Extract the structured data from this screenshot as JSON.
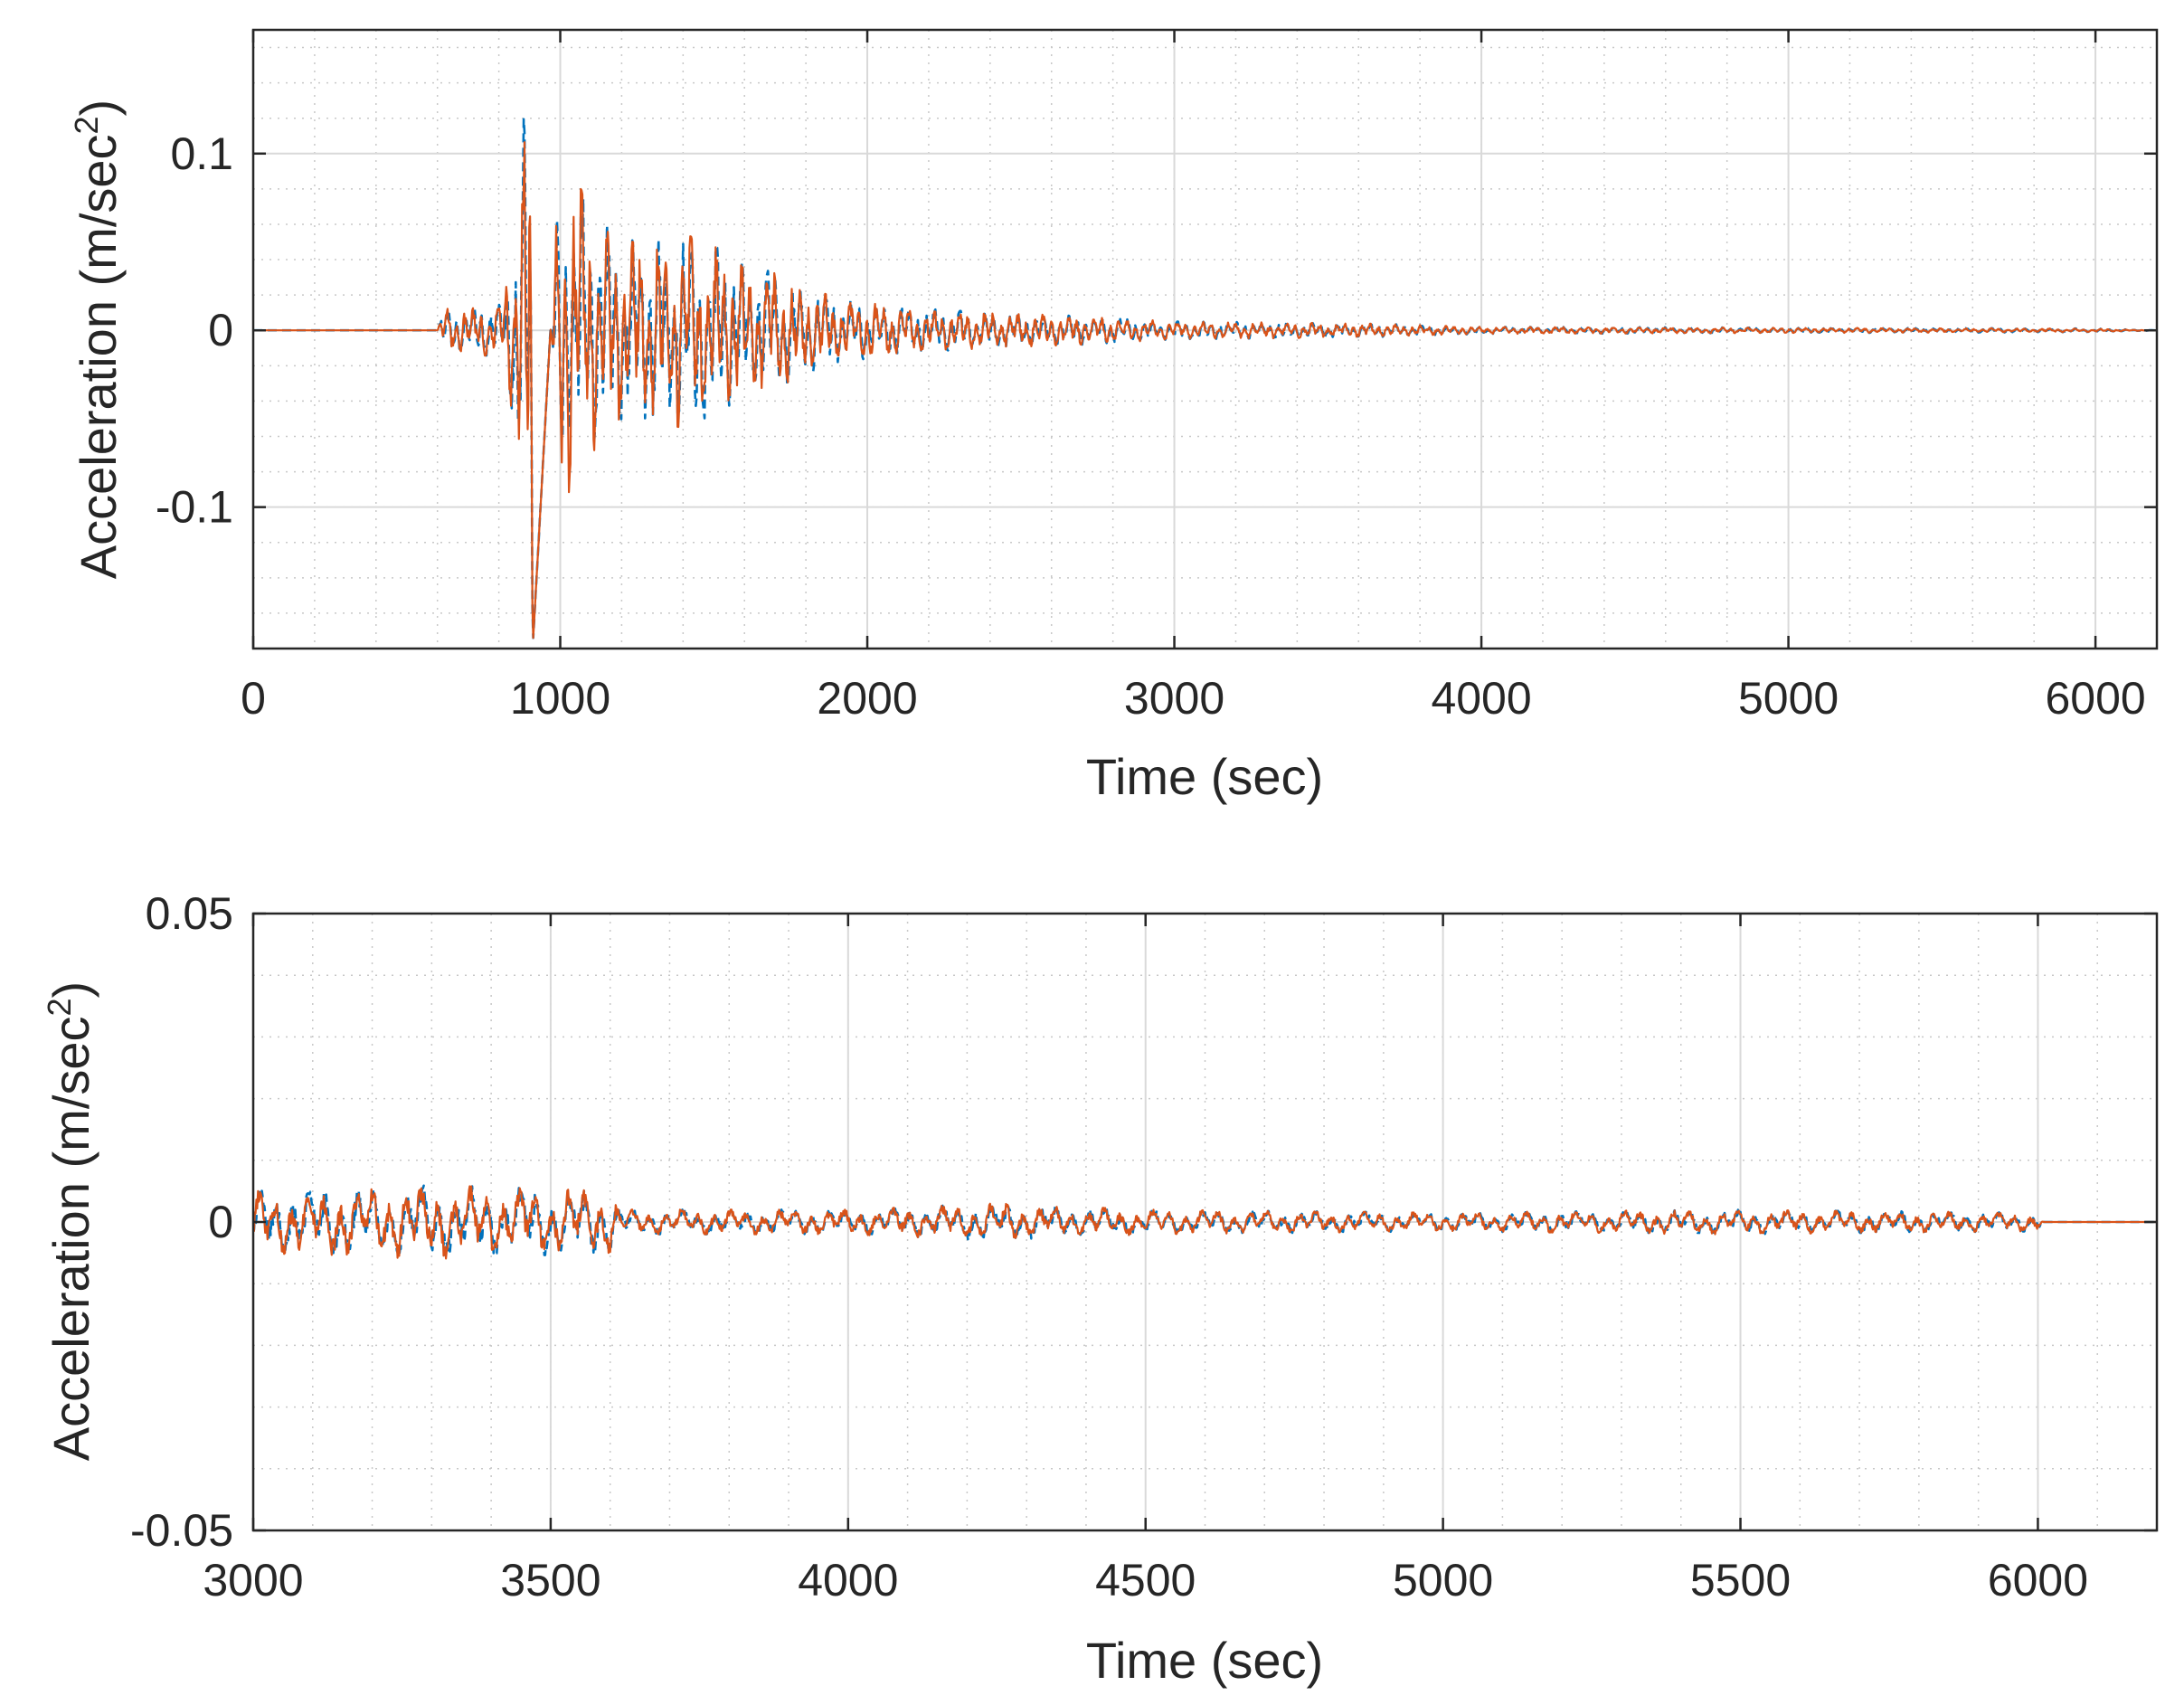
{
  "colors": {
    "series_blue": "#0072BD",
    "series_orange": "#D95319",
    "grid": "#d9d9d9",
    "axes": "#262626"
  },
  "chart_data": [
    {
      "type": "line",
      "title": "",
      "xlabel": "Time (sec)",
      "ylabel": "Acceleration (m/sec",
      "ylabel_sup": "2",
      "ylabel_close": ")",
      "xlim": [
        0,
        6200
      ],
      "ylim": [
        -0.18,
        0.17
      ],
      "xticks": [
        0,
        1000,
        2000,
        3000,
        4000,
        5000,
        6000
      ],
      "xtick_labels": [
        "0",
        "1000",
        "2000",
        "3000",
        "4000",
        "5000",
        "6000"
      ],
      "yticks": [
        -0.1,
        0,
        0.1
      ],
      "ytick_labels": [
        "-0.1",
        "0",
        "0.1"
      ],
      "grid": true,
      "minor_grid": true,
      "legend": "none",
      "series": [
        {
          "color": "#0072BD",
          "style": "dashed",
          "envelope": [
            [
              0,
              0
            ],
            [
              600,
              0.0
            ],
            [
              620,
              0.012
            ],
            [
              800,
              0.015
            ],
            [
              850,
              0.05
            ],
            [
              900,
              0.17
            ],
            [
              910,
              -0.18
            ],
            [
              1000,
              0.1
            ],
            [
              1100,
              0.07
            ],
            [
              1200,
              0.05
            ],
            [
              1400,
              0.055
            ],
            [
              1600,
              0.04
            ],
            [
              1800,
              0.025
            ],
            [
              1900,
              0.018
            ],
            [
              2200,
              0.012
            ],
            [
              2400,
              0.01
            ],
            [
              2700,
              0.008
            ],
            [
              3000,
              0.005
            ],
            [
              3600,
              0.004
            ],
            [
              4000,
              0.002
            ],
            [
              5000,
              0.0015
            ],
            [
              6000,
              0.001
            ],
            [
              6200,
              0.0
            ]
          ]
        },
        {
          "color": "#D95319",
          "style": "solid",
          "envelope": [
            [
              0,
              0
            ],
            [
              600,
              0.0
            ],
            [
              620,
              0.012
            ],
            [
              800,
              0.015
            ],
            [
              850,
              0.05
            ],
            [
              900,
              0.17
            ],
            [
              910,
              -0.18
            ],
            [
              1000,
              0.1
            ],
            [
              1100,
              0.07
            ],
            [
              1200,
              0.05
            ],
            [
              1400,
              0.055
            ],
            [
              1600,
              0.04
            ],
            [
              1800,
              0.025
            ],
            [
              1900,
              0.018
            ],
            [
              2200,
              0.012
            ],
            [
              2400,
              0.01
            ],
            [
              2700,
              0.008
            ],
            [
              3000,
              0.005
            ],
            [
              3600,
              0.004
            ],
            [
              4000,
              0.002
            ],
            [
              5000,
              0.0015
            ],
            [
              6000,
              0.001
            ],
            [
              6200,
              0.0
            ]
          ]
        }
      ]
    },
    {
      "type": "line",
      "title": "",
      "xlabel": "Time (sec)",
      "ylabel": "Acceleration (m/sec",
      "ylabel_sup": "2",
      "ylabel_close": ")",
      "xlim": [
        3000,
        6200
      ],
      "ylim": [
        -0.05,
        0.05
      ],
      "xticks": [
        3000,
        3500,
        4000,
        4500,
        5000,
        5500,
        6000
      ],
      "xtick_labels": [
        "3000",
        "3500",
        "4000",
        "4500",
        "5000",
        "5500",
        "6000"
      ],
      "yticks": [
        -0.05,
        0,
        0.05
      ],
      "ytick_labels": [
        "-0.05",
        "0",
        "0.05"
      ],
      "grid": true,
      "minor_grid": true,
      "legend": "none",
      "series": [
        {
          "color": "#0072BD",
          "style": "dashed",
          "envelope": [
            [
              3000,
              0.005
            ],
            [
              3300,
              0.006
            ],
            [
              3600,
              0.005
            ],
            [
              3620,
              0.002
            ],
            [
              4000,
              0.002
            ],
            [
              4250,
              0.003
            ],
            [
              4500,
              0.002
            ],
            [
              5000,
              0.0015
            ],
            [
              5450,
              0.002
            ],
            [
              6000,
              0.0015
            ],
            [
              6010,
              0.0
            ],
            [
              6200,
              0.0
            ]
          ]
        },
        {
          "color": "#D95319",
          "style": "solid",
          "envelope": [
            [
              3000,
              0.005
            ],
            [
              3300,
              0.006
            ],
            [
              3600,
              0.005
            ],
            [
              3620,
              0.002
            ],
            [
              4000,
              0.002
            ],
            [
              4250,
              0.003
            ],
            [
              4500,
              0.002
            ],
            [
              5000,
              0.0015
            ],
            [
              5450,
              0.002
            ],
            [
              6000,
              0.0015
            ],
            [
              6010,
              0.0
            ],
            [
              6200,
              0.0
            ]
          ]
        }
      ]
    }
  ]
}
